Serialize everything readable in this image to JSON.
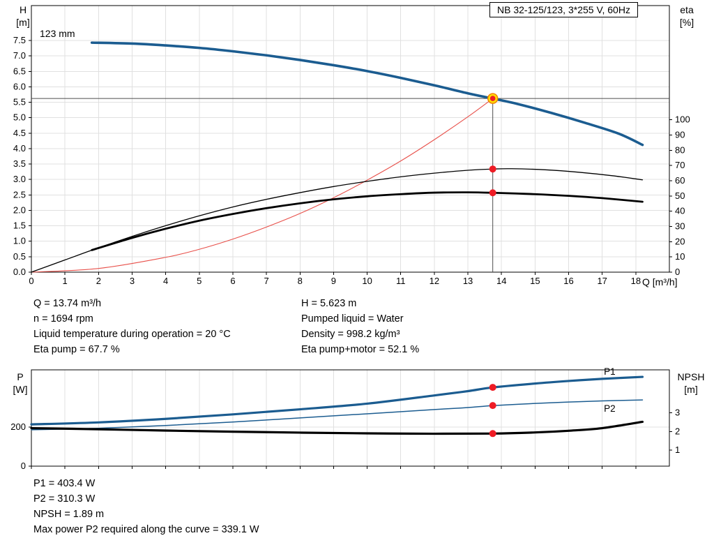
{
  "colors": {
    "blue": "#1b5c90",
    "red_curve": "#e8504a",
    "red_dot": "#ee1c25",
    "yellow": "#ffdf00",
    "orange": "#f08300",
    "duty_line": "#4d4d4d",
    "grid": "#e0e0e0"
  },
  "operating_point": {
    "left": [
      "Q = 13.74 m³/h",
      "n = 1694 rpm",
      "Liquid temperature during operation = 20 °C",
      "Eta pump = 67.7 %"
    ],
    "right": [
      "H = 5.623 m",
      "Pumped liquid = Water",
      "Density = 998.2 kg/m³",
      "Eta pump+motor = 52.1 %"
    ]
  },
  "power_results": [
    "P1 = 403.4 W",
    "P2 = 310.3 W",
    "NPSH = 1.89 m",
    "Max power P2 required along the curve = 339.1 W"
  ],
  "chart_data": [
    {
      "type": "line",
      "title": "NB 32-125/123, 3*255 V, 60Hz",
      "annotation": "123 mm",
      "xlabel": "Q [m³/h]",
      "ylabel_left": [
        "H",
        "[m]"
      ],
      "ylabel_right": [
        "eta",
        "[%]"
      ],
      "xlim": [
        0,
        19
      ],
      "ylim_left": [
        0,
        8.63
      ],
      "ylim_right": [
        0,
        175
      ],
      "x_ticks": [
        0,
        1,
        2,
        3,
        4,
        5,
        6,
        7,
        8,
        9,
        10,
        11,
        12,
        13,
        14,
        15,
        16,
        17,
        18
      ],
      "x_tick_labels": true,
      "left_decimals": 1,
      "y_ticks_left": [
        0,
        0.5,
        1,
        1.5,
        2,
        2.5,
        3,
        3.5,
        4,
        4.5,
        5,
        5.5,
        6,
        6.5,
        7,
        7.5
      ],
      "y_ticks_right": [
        0,
        10,
        20,
        30,
        40,
        50,
        60,
        70,
        80,
        90,
        100
      ],
      "duty_point": {
        "q": 13.74,
        "h": 5.623,
        "eta_pump": 67.7,
        "eta_pump_motor": 52.1
      },
      "series": [
        {
          "name": "pump-curve",
          "axis": "left",
          "color": "#1b5c90",
          "width": 3.6,
          "points": [
            [
              1.8,
              7.43
            ],
            [
              3,
              7.4
            ],
            [
              4,
              7.34
            ],
            [
              5,
              7.26
            ],
            [
              6,
              7.15
            ],
            [
              7,
              7.02
            ],
            [
              8,
              6.87
            ],
            [
              9,
              6.7
            ],
            [
              10,
              6.51
            ],
            [
              11,
              6.29
            ],
            [
              12,
              6.05
            ],
            [
              13,
              5.79
            ],
            [
              13.74,
              5.62
            ],
            [
              14.5,
              5.44
            ],
            [
              15.5,
              5.15
            ],
            [
              16.5,
              4.83
            ],
            [
              17.5,
              4.48
            ],
            [
              18.2,
              4.12
            ]
          ]
        },
        {
          "name": "system-curve",
          "axis": "left",
          "color": "#e8504a",
          "width": 1.1,
          "points": [
            [
              0,
              0
            ],
            [
              2,
              0.12
            ],
            [
              4,
              0.48
            ],
            [
              5,
              0.74
            ],
            [
              6,
              1.07
            ],
            [
              7,
              1.46
            ],
            [
              8,
              1.9
            ],
            [
              9,
              2.41
            ],
            [
              10,
              2.98
            ],
            [
              11,
              3.6
            ],
            [
              12,
              4.29
            ],
            [
              13,
              5.03
            ],
            [
              13.74,
              5.62
            ]
          ]
        },
        {
          "name": "eta-pump-curve",
          "axis": "right",
          "color": "#000000",
          "width": 1.3,
          "points": [
            [
              0,
              0
            ],
            [
              1,
              8
            ],
            [
              2,
              16
            ],
            [
              3,
              23.5
            ],
            [
              4,
              30.5
            ],
            [
              5,
              37
            ],
            [
              6,
              42.8
            ],
            [
              7,
              47.8
            ],
            [
              8,
              52.2
            ],
            [
              9,
              56.2
            ],
            [
              10,
              59.6
            ],
            [
              11,
              62.6
            ],
            [
              12,
              65
            ],
            [
              13,
              66.9
            ],
            [
              13.74,
              67.7
            ],
            [
              14.3,
              67.9
            ],
            [
              15.3,
              67.2
            ],
            [
              16.3,
              65.6
            ],
            [
              17.3,
              63.3
            ],
            [
              18.2,
              60.6
            ]
          ]
        },
        {
          "name": "eta-pump-motor-lead",
          "axis": "right",
          "color": "#000000",
          "width": 0.8,
          "points": [
            [
              0,
              0
            ],
            [
              1.8,
              14.5
            ]
          ]
        },
        {
          "name": "eta-pump-motor-curve",
          "axis": "right",
          "color": "#000000",
          "width": 2.8,
          "points": [
            [
              1.8,
              14.5
            ],
            [
              3,
              22.5
            ],
            [
              4,
              28.5
            ],
            [
              5,
              33.8
            ],
            [
              6,
              38.2
            ],
            [
              7,
              42
            ],
            [
              8,
              45.2
            ],
            [
              9,
              47.8
            ],
            [
              10,
              49.8
            ],
            [
              11,
              51.2
            ],
            [
              12,
              52.2
            ],
            [
              13,
              52.4
            ],
            [
              13.74,
              52.1
            ],
            [
              15,
              51.2
            ],
            [
              16,
              50.1
            ],
            [
              17,
              48.6
            ],
            [
              18.2,
              46.2
            ]
          ]
        }
      ]
    },
    {
      "type": "line",
      "title": "",
      "xlabel": "",
      "ylabel_left": [
        "P",
        "[W]"
      ],
      "ylabel_right": [
        "NPSH",
        "[m]"
      ],
      "xlim": [
        0,
        19
      ],
      "ylim_left": [
        0,
        493
      ],
      "ylim_right": [
        0.14,
        5.31
      ],
      "x_ticks": [
        0,
        1,
        2,
        3,
        4,
        5,
        6,
        7,
        8,
        9,
        10,
        11,
        12,
        13,
        14,
        15,
        16,
        17,
        18
      ],
      "x_tick_labels": false,
      "left_decimals": 0,
      "y_ticks_left": [
        0,
        200
      ],
      "y_ticks_right": [
        1,
        2,
        3
      ],
      "markers": [
        {
          "q": 13.74,
          "v": 403.4,
          "axis": "left"
        },
        {
          "q": 13.74,
          "v": 310.3,
          "axis": "left"
        },
        {
          "q": 13.74,
          "v": 1.89,
          "axis": "right"
        }
      ],
      "series": [
        {
          "name": "p1-curve",
          "axis": "left",
          "color": "#1b5c90",
          "width": 3.2,
          "label": {
            "text": "P1",
            "q": 17.05,
            "v": 468
          },
          "points": [
            [
              0,
              214
            ],
            [
              2,
              224
            ],
            [
              4,
              242
            ],
            [
              6,
              265
            ],
            [
              8,
              291
            ],
            [
              10,
              320
            ],
            [
              12,
              362
            ],
            [
              13,
              384
            ],
            [
              13.74,
              403
            ],
            [
              15,
              423
            ],
            [
              16,
              436
            ],
            [
              17,
              447
            ],
            [
              18.2,
              457
            ]
          ]
        },
        {
          "name": "p2-curve",
          "axis": "left",
          "color": "#1b5c90",
          "width": 1.5,
          "label": {
            "text": "P2",
            "q": 17.05,
            "v": 278
          },
          "points": [
            [
              0,
              186
            ],
            [
              2,
              194
            ],
            [
              4,
              208
            ],
            [
              6,
              226
            ],
            [
              8,
              247
            ],
            [
              10,
              268
            ],
            [
              12,
              290
            ],
            [
              13,
              300
            ],
            [
              13.74,
              310
            ],
            [
              15,
              321
            ],
            [
              16,
              328
            ],
            [
              17,
              334
            ],
            [
              18.2,
              339
            ]
          ]
        },
        {
          "name": "npsh-curve",
          "axis": "right",
          "color": "#000000",
          "width": 3.2,
          "points": [
            [
              0,
              2.18
            ],
            [
              2,
              2.12
            ],
            [
              4,
              2.05
            ],
            [
              6,
              1.99
            ],
            [
              8,
              1.94
            ],
            [
              10,
              1.9
            ],
            [
              12,
              1.88
            ],
            [
              13.74,
              1.89
            ],
            [
              15,
              1.95
            ],
            [
              16,
              2.04
            ],
            [
              17,
              2.18
            ],
            [
              18.2,
              2.52
            ]
          ]
        }
      ]
    }
  ]
}
